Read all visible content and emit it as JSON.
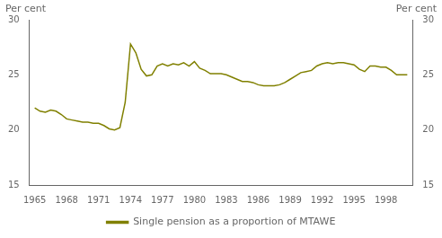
{
  "chart_data": {
    "type": "line",
    "ylabel": "Per cent",
    "y2label": "Per cent",
    "x": [
      1965,
      1965.5,
      1966,
      1966.5,
      1967,
      1967.5,
      1968,
      1968.5,
      1969,
      1969.5,
      1970,
      1970.5,
      1971,
      1971.5,
      1972,
      1972.5,
      1973,
      1973.5,
      1974,
      1974.5,
      1975,
      1975.5,
      1976,
      1976.5,
      1977,
      1977.5,
      1978,
      1978.5,
      1979,
      1979.5,
      1980,
      1980.5,
      1981,
      1981.5,
      1982,
      1982.5,
      1983,
      1983.5,
      1984,
      1984.5,
      1985,
      1985.5,
      1986,
      1986.5,
      1987,
      1987.5,
      1988,
      1988.5,
      1989,
      1989.5,
      1990,
      1990.5,
      1991,
      1991.5,
      1992,
      1992.5,
      1993,
      1993.5,
      1994,
      1994.5,
      1995,
      1995.5,
      1996,
      1996.5,
      1997,
      1997.5,
      1998,
      1998.5,
      1999,
      1999.5,
      2000
    ],
    "series": [
      {
        "name": "Single pension as a proportion of MTAWE",
        "color": "#808000",
        "values": [
          22.0,
          21.7,
          21.6,
          21.8,
          21.7,
          21.4,
          21.0,
          20.9,
          20.8,
          20.7,
          20.7,
          20.6,
          20.6,
          20.4,
          20.1,
          20.0,
          20.2,
          22.5,
          27.8,
          27.0,
          25.5,
          24.9,
          25.0,
          25.8,
          26.0,
          25.8,
          26.0,
          25.9,
          26.1,
          25.8,
          26.2,
          25.6,
          25.4,
          25.1,
          25.1,
          25.1,
          25.0,
          24.8,
          24.6,
          24.4,
          24.4,
          24.3,
          24.1,
          24.0,
          24.0,
          24.0,
          24.1,
          24.3,
          24.6,
          24.9,
          25.2,
          25.3,
          25.4,
          25.8,
          26.0,
          26.1,
          26.0,
          26.1,
          26.1,
          26.0,
          25.9,
          25.5,
          25.3,
          25.8,
          25.8,
          25.7,
          25.7,
          25.4,
          25.0,
          25.0,
          25.0
        ]
      }
    ],
    "xlim": [
      1964.5,
      2000.5
    ],
    "xticks": [
      1965,
      1968,
      1971,
      1974,
      1977,
      1980,
      1983,
      1986,
      1989,
      1992,
      1995,
      1998
    ],
    "ylim": [
      15,
      30
    ],
    "yticks": [
      15,
      20,
      25,
      30
    ],
    "y2lim": [
      15,
      30
    ],
    "y2ticks": [
      15,
      20,
      25,
      30
    ],
    "legend": "bottom",
    "grid": false
  }
}
